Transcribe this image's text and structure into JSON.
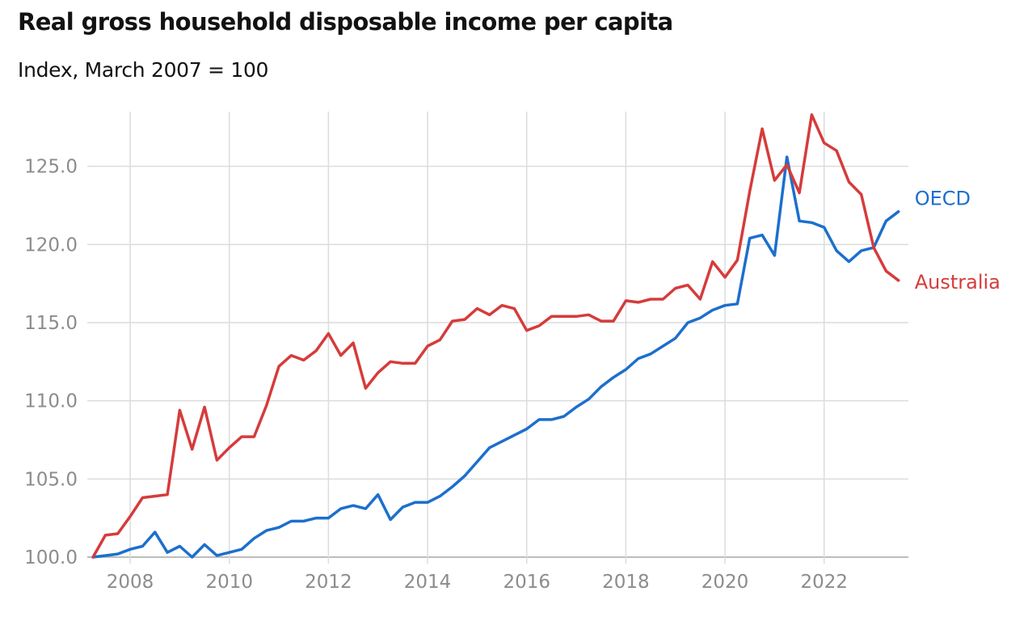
{
  "header": {
    "title": "Real gross household disposable income per capita",
    "subtitle": "Index, March 2007 = 100"
  },
  "chart_data": {
    "type": "line",
    "title": "Real gross household disposable income per capita",
    "subtitle": "Index, March 2007 = 100",
    "xlabel": "",
    "ylabel": "",
    "xlim": [
      2007.2,
      2023.7
    ],
    "ylim": [
      100,
      128.5
    ],
    "y_ticks": [
      100.0,
      105.0,
      110.0,
      115.0,
      120.0,
      125.0
    ],
    "y_tick_labels": [
      "100.0",
      "105.0",
      "110.0",
      "115.0",
      "120.0",
      "125.0"
    ],
    "x_ticks": [
      2008,
      2010,
      2012,
      2014,
      2016,
      2018,
      2020,
      2022
    ],
    "x_tick_labels": [
      "2008",
      "2010",
      "2012",
      "2014",
      "2016",
      "2018",
      "2020",
      "2022"
    ],
    "grid": true,
    "legend": "inline labels at right end of lines",
    "series": [
      {
        "name": "OECD",
        "color": "#1c6fcd",
        "x": [
          2007.25,
          2007.5,
          2007.75,
          2008.0,
          2008.25,
          2008.5,
          2008.75,
          2009.0,
          2009.25,
          2009.5,
          2009.75,
          2010.0,
          2010.25,
          2010.5,
          2010.75,
          2011.0,
          2011.25,
          2011.5,
          2011.75,
          2012.0,
          2012.25,
          2012.5,
          2012.75,
          2013.0,
          2013.25,
          2013.5,
          2013.75,
          2014.0,
          2014.25,
          2014.5,
          2014.75,
          2015.0,
          2015.25,
          2015.5,
          2015.75,
          2016.0,
          2016.25,
          2016.5,
          2016.75,
          2017.0,
          2017.25,
          2017.5,
          2017.75,
          2018.0,
          2018.25,
          2018.5,
          2018.75,
          2019.0,
          2019.25,
          2019.5,
          2019.75,
          2020.0,
          2020.25,
          2020.5,
          2020.75,
          2021.0,
          2021.25,
          2021.5,
          2021.75,
          2022.0,
          2022.25,
          2022.5,
          2022.75,
          2023.0,
          2023.25,
          2023.5
        ],
        "values": [
          100.0,
          100.1,
          100.2,
          100.5,
          100.7,
          101.6,
          100.3,
          100.7,
          100.0,
          100.8,
          100.1,
          100.3,
          100.5,
          101.2,
          101.7,
          101.9,
          102.3,
          102.3,
          102.5,
          102.5,
          103.1,
          103.3,
          103.1,
          104.0,
          102.4,
          103.2,
          103.5,
          103.5,
          103.9,
          104.5,
          105.2,
          106.1,
          107.0,
          107.4,
          107.8,
          108.2,
          108.8,
          108.8,
          109.0,
          109.6,
          110.1,
          110.9,
          111.5,
          112.0,
          112.7,
          113.0,
          113.5,
          114.0,
          115.0,
          115.3,
          115.8,
          116.1,
          116.2,
          120.4,
          120.6,
          119.3,
          125.6,
          121.5,
          121.4,
          121.1,
          119.6,
          118.9,
          119.6,
          119.8,
          121.5,
          122.1
        ]
      },
      {
        "name": "Australia",
        "color": "#d63b3b",
        "x": [
          2007.25,
          2007.5,
          2007.75,
          2008.0,
          2008.25,
          2008.5,
          2008.75,
          2009.0,
          2009.25,
          2009.5,
          2009.75,
          2010.0,
          2010.25,
          2010.5,
          2010.75,
          2011.0,
          2011.25,
          2011.5,
          2011.75,
          2012.0,
          2012.25,
          2012.5,
          2012.75,
          2013.0,
          2013.25,
          2013.5,
          2013.75,
          2014.0,
          2014.25,
          2014.5,
          2014.75,
          2015.0,
          2015.25,
          2015.5,
          2015.75,
          2016.0,
          2016.25,
          2016.5,
          2016.75,
          2017.0,
          2017.25,
          2017.5,
          2017.75,
          2018.0,
          2018.25,
          2018.5,
          2018.75,
          2019.0,
          2019.25,
          2019.5,
          2019.75,
          2020.0,
          2020.25,
          2020.5,
          2020.75,
          2021.0,
          2021.25,
          2021.5,
          2021.75,
          2022.0,
          2022.25,
          2022.5,
          2022.75,
          2023.0,
          2023.25,
          2023.5
        ],
        "values": [
          100.0,
          101.4,
          101.5,
          102.6,
          103.8,
          103.9,
          104.0,
          109.4,
          106.9,
          109.6,
          106.2,
          107.0,
          107.7,
          107.7,
          109.7,
          112.2,
          112.9,
          112.6,
          113.2,
          114.3,
          112.9,
          113.7,
          110.8,
          111.8,
          112.5,
          112.4,
          112.4,
          113.5,
          113.9,
          115.1,
          115.2,
          115.9,
          115.5,
          116.1,
          115.9,
          114.5,
          114.8,
          115.4,
          115.4,
          115.4,
          115.5,
          115.1,
          115.1,
          116.4,
          116.3,
          116.5,
          116.5,
          117.2,
          117.4,
          116.5,
          118.9,
          117.9,
          119.0,
          123.4,
          127.4,
          124.1,
          125.1,
          123.3,
          128.3,
          126.5,
          126.0,
          124.0,
          123.2,
          119.8,
          118.3,
          117.7
        ]
      }
    ]
  }
}
